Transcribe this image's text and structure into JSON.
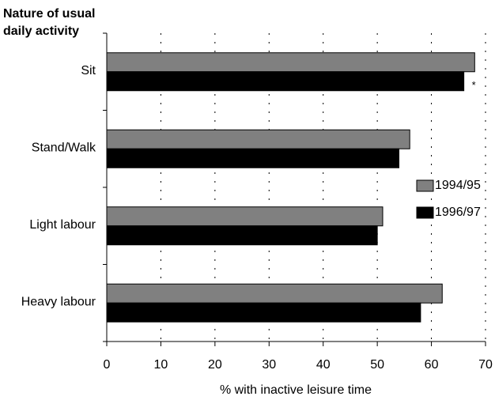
{
  "chart_data": {
    "type": "bar",
    "orientation": "horizontal",
    "ylabel_lines": [
      "Nature of usual",
      "daily activity"
    ],
    "xlabel": "% with inactive leisure time",
    "categories": [
      "Sit",
      "Stand/Walk",
      "Light labour",
      "Heavy labour"
    ],
    "series": [
      {
        "name": "1994/95",
        "color": "#808080",
        "values": [
          68,
          56,
          51,
          62
        ]
      },
      {
        "name": "1996/97",
        "color": "#000000",
        "values": [
          66,
          54,
          50,
          58
        ]
      }
    ],
    "annotation": "*",
    "xlim": [
      0,
      70
    ],
    "xticks": [
      0,
      10,
      20,
      30,
      40,
      50,
      60,
      70
    ],
    "grid": true,
    "legend": "right"
  }
}
